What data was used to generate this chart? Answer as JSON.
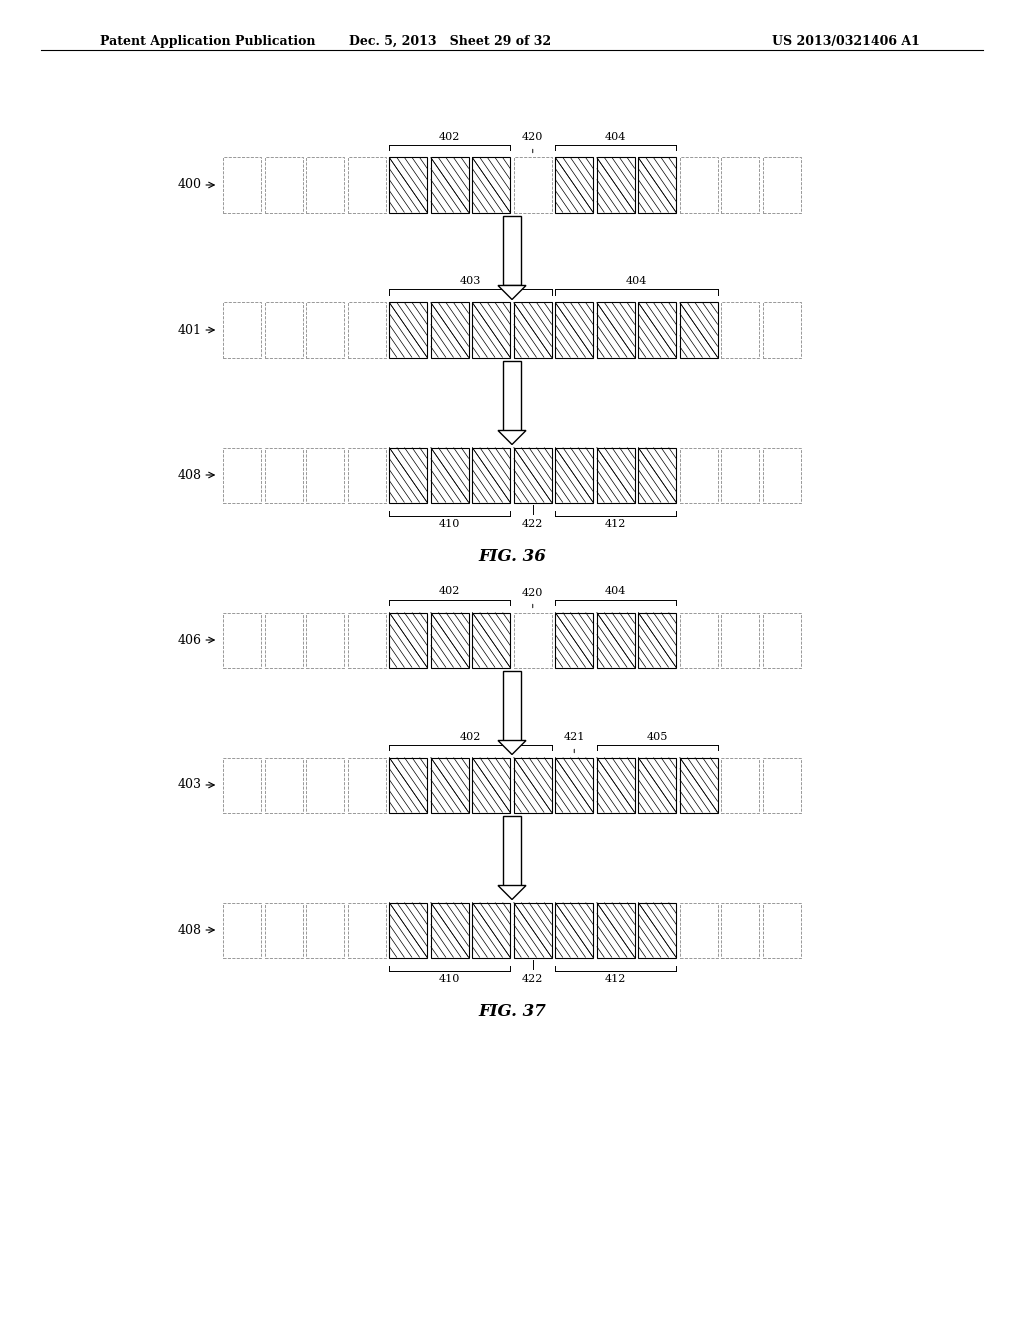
{
  "header_left": "Patent Application Publication",
  "header_mid": "Dec. 5, 2013   Sheet 29 of 32",
  "header_right": "US 2013/0321406 A1",
  "fig36": {
    "label": "FIG. 36",
    "rows": [
      {
        "row_label": "400",
        "total_cells": 14,
        "hatched_ranges": [
          [
            4,
            7
          ],
          [
            8,
            11
          ]
        ],
        "bracket_labels": [
          {
            "text": "402",
            "range": [
              4,
              7
            ],
            "side": "top"
          },
          {
            "text": "420",
            "range": [
              7,
              8
            ],
            "side": "top",
            "is_point": true
          },
          {
            "text": "404",
            "range": [
              8,
              11
            ],
            "side": "top"
          }
        ]
      },
      {
        "row_label": "401",
        "total_cells": 14,
        "hatched_ranges": [
          [
            4,
            8
          ],
          [
            8,
            12
          ]
        ],
        "bracket_labels": [
          {
            "text": "403",
            "range": [
              4,
              8
            ],
            "side": "top"
          },
          {
            "text": "404",
            "range": [
              8,
              12
            ],
            "side": "top"
          }
        ]
      },
      {
        "row_label": "408",
        "total_cells": 14,
        "hatched_ranges": [
          [
            4,
            7
          ],
          [
            7,
            11
          ]
        ],
        "bracket_labels": [
          {
            "text": "410",
            "range": [
              4,
              7
            ],
            "side": "bottom"
          },
          {
            "text": "422",
            "range": [
              7,
              8
            ],
            "side": "bottom",
            "is_point": true
          },
          {
            "text": "412",
            "range": [
              8,
              11
            ],
            "side": "bottom"
          }
        ]
      }
    ]
  },
  "fig37": {
    "label": "FIG. 37",
    "rows": [
      {
        "row_label": "406",
        "total_cells": 14,
        "hatched_ranges": [
          [
            4,
            7
          ],
          [
            8,
            11
          ]
        ],
        "bracket_labels": [
          {
            "text": "402",
            "range": [
              4,
              7
            ],
            "side": "top"
          },
          {
            "text": "420",
            "range": [
              7,
              8
            ],
            "side": "top",
            "is_point": true
          },
          {
            "text": "404",
            "range": [
              8,
              11
            ],
            "side": "top"
          }
        ]
      },
      {
        "row_label": "403",
        "total_cells": 14,
        "hatched_ranges": [
          [
            4,
            8
          ],
          [
            8,
            12
          ]
        ],
        "bracket_labels": [
          {
            "text": "402",
            "range": [
              4,
              8
            ],
            "side": "top"
          },
          {
            "text": "421",
            "range": [
              8,
              9
            ],
            "side": "top",
            "is_point": true
          },
          {
            "text": "405",
            "range": [
              9,
              12
            ],
            "side": "top"
          }
        ]
      },
      {
        "row_label": "408",
        "total_cells": 14,
        "hatched_ranges": [
          [
            4,
            7
          ],
          [
            7,
            11
          ]
        ],
        "bracket_labels": [
          {
            "text": "410",
            "range": [
              4,
              7
            ],
            "side": "bottom"
          },
          {
            "text": "422",
            "range": [
              7,
              8
            ],
            "side": "bottom",
            "is_point": true
          },
          {
            "text": "412",
            "range": [
              8,
              11
            ],
            "side": "bottom"
          }
        ]
      }
    ]
  }
}
